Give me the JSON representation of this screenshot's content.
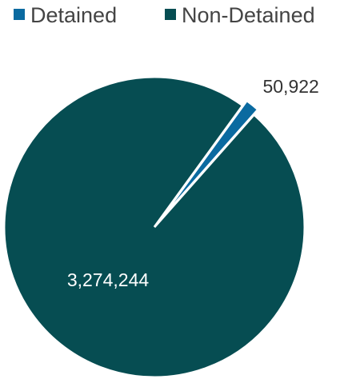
{
  "chart_data": {
    "type": "pie",
    "series": [
      {
        "name": "Detained",
        "value": 50922,
        "label": "50,922",
        "color": "#0a6aa0",
        "exploded": true,
        "label_color": "#333333"
      },
      {
        "name": "Non-Detained",
        "value": 3274244,
        "label": "3,274,244",
        "color": "#064d52",
        "exploded": false,
        "label_color": "#ffffff"
      }
    ],
    "legend_position": "top",
    "title": ""
  }
}
